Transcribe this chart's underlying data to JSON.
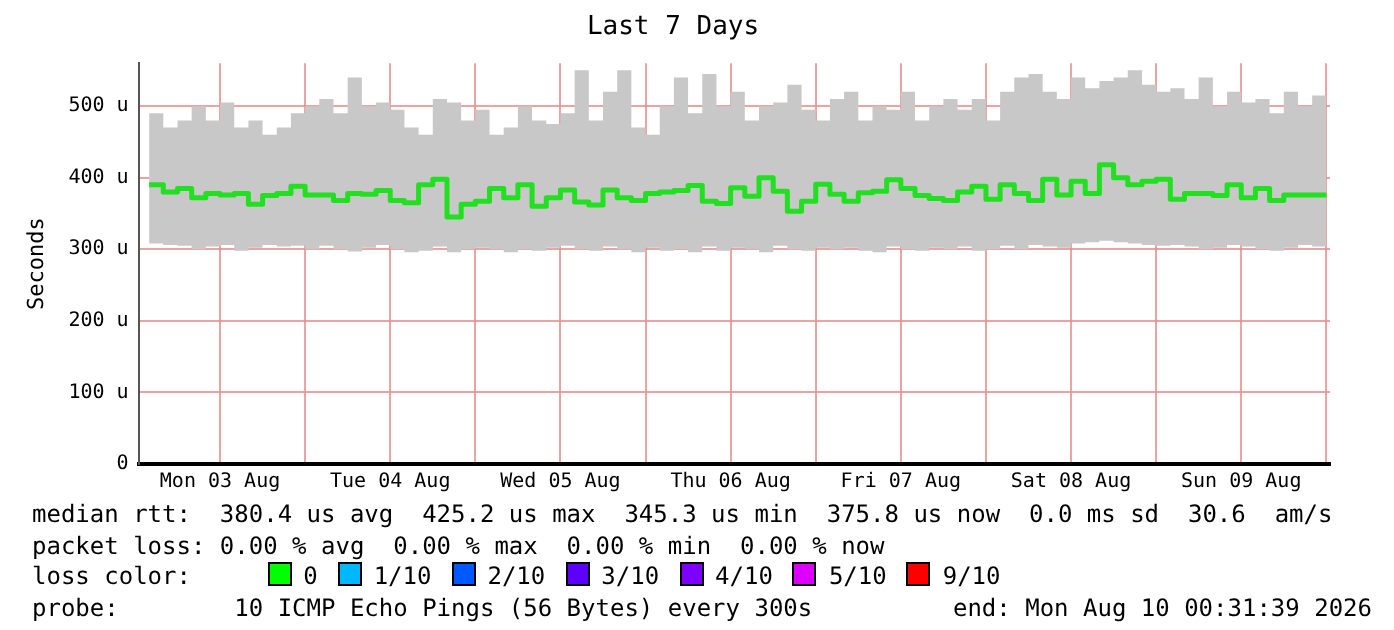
{
  "chart_data": {
    "type": "step",
    "title": "Last 7 Days",
    "ylabel": "Seconds",
    "x": [
      "2026-08-03T02:00",
      "2026-08-03T04:00",
      "2026-08-03T06:00",
      "2026-08-03T08:00",
      "2026-08-03T10:00",
      "2026-08-03T12:00",
      "2026-08-03T14:00",
      "2026-08-03T16:00",
      "2026-08-03T18:00",
      "2026-08-03T20:00",
      "2026-08-03T22:00",
      "2026-08-04T00:00",
      "2026-08-04T02:00",
      "2026-08-04T04:00",
      "2026-08-04T06:00",
      "2026-08-04T08:00",
      "2026-08-04T10:00",
      "2026-08-04T12:00",
      "2026-08-04T14:00",
      "2026-08-04T16:00",
      "2026-08-04T18:00",
      "2026-08-04T20:00",
      "2026-08-04T22:00",
      "2026-08-05T00:00",
      "2026-08-05T02:00",
      "2026-08-05T04:00",
      "2026-08-05T06:00",
      "2026-08-05T08:00",
      "2026-08-05T10:00",
      "2026-08-05T12:00",
      "2026-08-05T14:00",
      "2026-08-05T16:00",
      "2026-08-05T18:00",
      "2026-08-05T20:00",
      "2026-08-05T22:00",
      "2026-08-06T00:00",
      "2026-08-06T02:00",
      "2026-08-06T04:00",
      "2026-08-06T06:00",
      "2026-08-06T08:00",
      "2026-08-06T10:00",
      "2026-08-06T12:00",
      "2026-08-06T14:00",
      "2026-08-06T16:00",
      "2026-08-06T18:00",
      "2026-08-06T20:00",
      "2026-08-06T22:00",
      "2026-08-07T00:00",
      "2026-08-07T02:00",
      "2026-08-07T04:00",
      "2026-08-07T06:00",
      "2026-08-07T08:00",
      "2026-08-07T10:00",
      "2026-08-07T12:00",
      "2026-08-07T14:00",
      "2026-08-07T16:00",
      "2026-08-07T18:00",
      "2026-08-07T20:00",
      "2026-08-07T22:00",
      "2026-08-08T00:00",
      "2026-08-08T02:00",
      "2026-08-08T04:00",
      "2026-08-08T06:00",
      "2026-08-08T08:00",
      "2026-08-08T10:00",
      "2026-08-08T12:00",
      "2026-08-08T14:00",
      "2026-08-08T16:00",
      "2026-08-08T18:00",
      "2026-08-08T20:00",
      "2026-08-08T22:00",
      "2026-08-09T00:00",
      "2026-08-09T02:00",
      "2026-08-09T04:00",
      "2026-08-09T06:00",
      "2026-08-09T08:00",
      "2026-08-09T10:00",
      "2026-08-09T12:00",
      "2026-08-09T14:00",
      "2026-08-09T16:00",
      "2026-08-09T18:00",
      "2026-08-09T20:00",
      "2026-08-09T22:00",
      "2026-08-10T00:00"
    ],
    "series": [
      {
        "color": "#20e020",
        "values": [
          390,
          380,
          385,
          372,
          378,
          376,
          378,
          363,
          375,
          378,
          388,
          376,
          376,
          368,
          378,
          377,
          382,
          368,
          365,
          390,
          398,
          345,
          363,
          367,
          385,
          372,
          390,
          360,
          372,
          383,
          366,
          362,
          383,
          372,
          368,
          378,
          380,
          382,
          389,
          367,
          364,
          386,
          374,
          400,
          381,
          353,
          367,
          391,
          377,
          367,
          379,
          381,
          397,
          385,
          375,
          371,
          368,
          380,
          388,
          370,
          390,
          378,
          368,
          398,
          376,
          395,
          378,
          418,
          400,
          390,
          395,
          398,
          370,
          378,
          378,
          375,
          390,
          372,
          385,
          368,
          376,
          376,
          376,
          376
        ],
        "lower": [
          308,
          306,
          305,
          300,
          304,
          306,
          298,
          302,
          306,
          304,
          305,
          300,
          305,
          300,
          297,
          302,
          306,
          300,
          296,
          298,
          304,
          296,
          300,
          302,
          300,
          296,
          300,
          298,
          302,
          305,
          300,
          298,
          304,
          300,
          296,
          302,
          298,
          300,
          296,
          304,
          298,
          302,
          300,
          296,
          305,
          300,
          298,
          302,
          300,
          302,
          298,
          296,
          304,
          300,
          298,
          302,
          300,
          304,
          298,
          300,
          305,
          300,
          306,
          304,
          302,
          308,
          310,
          312,
          310,
          308,
          306,
          305,
          306,
          304,
          300,
          302,
          306,
          304,
          300,
          298,
          302,
          306,
          304,
          302
        ],
        "upper": [
          490,
          470,
          480,
          500,
          480,
          505,
          470,
          480,
          460,
          470,
          490,
          500,
          510,
          490,
          540,
          500,
          505,
          495,
          470,
          460,
          510,
          505,
          480,
          495,
          460,
          470,
          500,
          480,
          475,
          490,
          550,
          480,
          520,
          550,
          470,
          460,
          500,
          540,
          490,
          545,
          500,
          520,
          480,
          500,
          505,
          530,
          495,
          480,
          510,
          520,
          480,
          500,
          495,
          520,
          480,
          500,
          510,
          495,
          510,
          480,
          520,
          540,
          545,
          520,
          510,
          540,
          525,
          535,
          540,
          550,
          530,
          520,
          525,
          510,
          540,
          500,
          520,
          505,
          510,
          490,
          520,
          500,
          515,
          480
        ]
      }
    ],
    "xlim": [
      "2026-08-03T00:31",
      "2026-08-10T00:31"
    ],
    "xticks": [
      {
        "value": "2026-08-03T12:00",
        "label": "Mon 03 Aug"
      },
      {
        "value": "2026-08-04T00:00",
        "label": null
      },
      {
        "value": "2026-08-04T12:00",
        "label": "Tue 04 Aug"
      },
      {
        "value": "2026-08-05T00:00",
        "label": null
      },
      {
        "value": "2026-08-05T12:00",
        "label": "Wed 05 Aug"
      },
      {
        "value": "2026-08-06T00:00",
        "label": null
      },
      {
        "value": "2026-08-06T12:00",
        "label": "Thu 06 Aug"
      },
      {
        "value": "2026-08-07T00:00",
        "label": null
      },
      {
        "value": "2026-08-07T12:00",
        "label": "Fri 07 Aug"
      },
      {
        "value": "2026-08-08T00:00",
        "label": null
      },
      {
        "value": "2026-08-08T12:00",
        "label": "Sat 08 Aug"
      },
      {
        "value": "2026-08-09T00:00",
        "label": null
      },
      {
        "value": "2026-08-09T12:00",
        "label": "Sun 09 Aug"
      },
      {
        "value": "2026-08-10T00:00",
        "label": null
      }
    ],
    "ylim": [
      0,
      560
    ],
    "yticks": [
      0,
      {
        "value": 100,
        "label": "100 u"
      },
      {
        "value": 200,
        "label": "200 u"
      },
      {
        "value": 300,
        "label": "300 u"
      },
      {
        "value": 400,
        "label": "400 u"
      },
      {
        "value": 500,
        "label": "500 u"
      }
    ],
    "grid": true,
    "legend": false,
    "annotations": [
      "median rtt:  380.4 us avg  425.2 us max  345.3 us min  375.8 us now  0.0 ms sd  30.6  am/s",
      "packet loss: 0.00 % avg  0.00 % max  0.00 % min  0.00 % now",
      "loss color:",
      "0",
      "1/10",
      "2/10",
      "3/10",
      "4/10",
      "5/10",
      "9/10",
      "probe:        10 ICMP Echo Pings (56 Bytes) every 300s",
      "end: Mon Aug 10 00:31:39 2026"
    ]
  }
}
